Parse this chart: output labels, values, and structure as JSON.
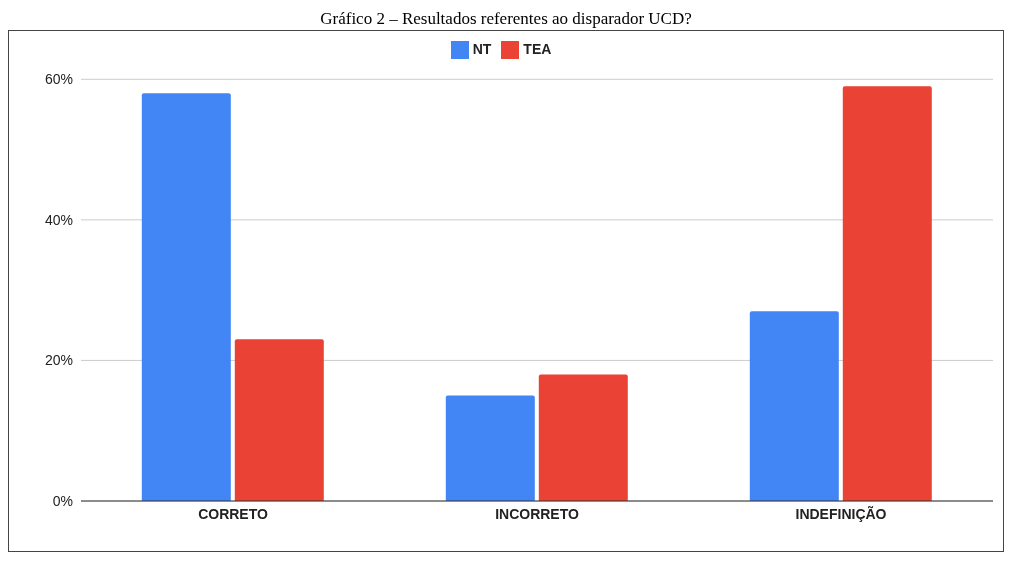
{
  "chart_data": {
    "type": "bar",
    "title": "Gráfico 2 – Resultados referentes ao disparador UCD?",
    "categories": [
      "CORRETO",
      "INCORRETO",
      "INDEFINIÇÃO"
    ],
    "series": [
      {
        "name": "NT",
        "color": "#4285f4",
        "values": [
          58,
          15,
          27
        ]
      },
      {
        "name": "TEA",
        "color": "#ea4335",
        "values": [
          23,
          18,
          59
        ]
      }
    ],
    "ylim": [
      0,
      60
    ],
    "yticks": [
      {
        "value": 0,
        "label": "0%"
      },
      {
        "value": 20,
        "label": "20%"
      },
      {
        "value": 40,
        "label": "40%"
      },
      {
        "value": 60,
        "label": "60%"
      }
    ],
    "grid": "y",
    "legend": "top"
  }
}
